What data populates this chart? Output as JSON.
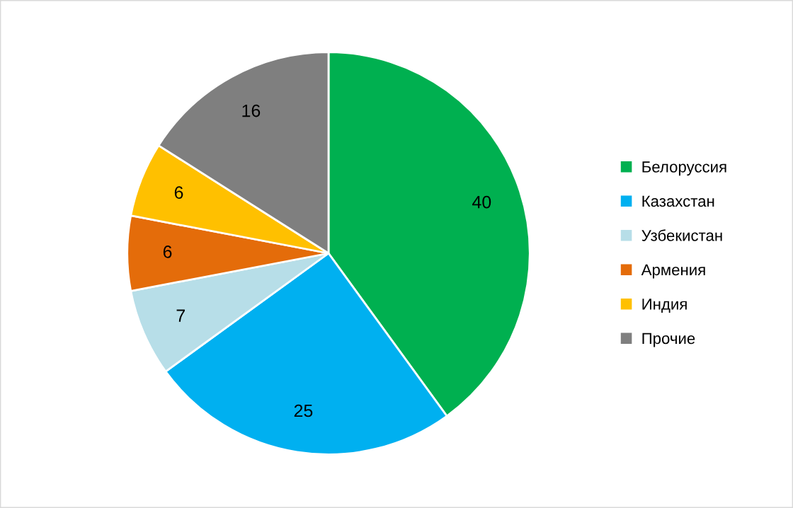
{
  "chart_data": {
    "type": "pie",
    "categories": [
      "Белоруссия",
      "Казахстан",
      "Узбекистан",
      "Армения",
      "Индия",
      "Прочие"
    ],
    "values": [
      40,
      25,
      7,
      6,
      6,
      16
    ],
    "colors": [
      "#00b050",
      "#00b0f0",
      "#b7dee8",
      "#e46c0a",
      "#ffc000",
      "#7f7f7f"
    ],
    "data_labels": true,
    "legend": "right"
  }
}
